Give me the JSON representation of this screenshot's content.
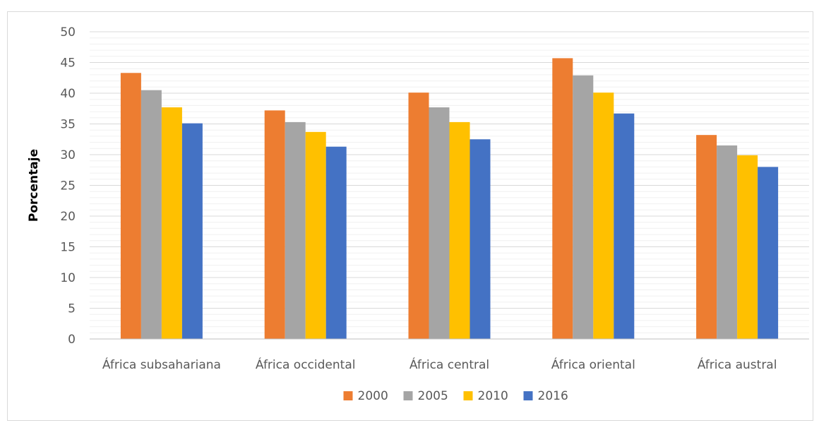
{
  "chart_data": {
    "type": "bar",
    "title": "",
    "xlabel": "",
    "ylabel": "Porcentaje",
    "ylim": [
      0,
      50
    ],
    "ytick_step": 5,
    "ytick_labels": [
      "0",
      "5",
      "10",
      "15",
      "20",
      "25",
      "30",
      "35",
      "40",
      "45",
      "50"
    ],
    "categories": [
      "África subsahariana",
      "África occidental",
      "África central",
      "África oriental",
      "África austral"
    ],
    "series": [
      {
        "name": "2000",
        "color": "#ED7D31",
        "values": [
          43.3,
          37.2,
          40.1,
          45.7,
          33.2
        ]
      },
      {
        "name": "2005",
        "color": "#A5A5A5",
        "values": [
          40.5,
          35.3,
          37.7,
          42.9,
          31.5
        ]
      },
      {
        "name": "2010",
        "color": "#FFC000",
        "values": [
          37.7,
          33.7,
          35.3,
          40.1,
          29.9
        ]
      },
      {
        "name": "2016",
        "color": "#4472C4",
        "values": [
          35.1,
          31.3,
          32.5,
          36.7,
          28.0
        ]
      }
    ],
    "grid": true,
    "legend": "bottom"
  }
}
